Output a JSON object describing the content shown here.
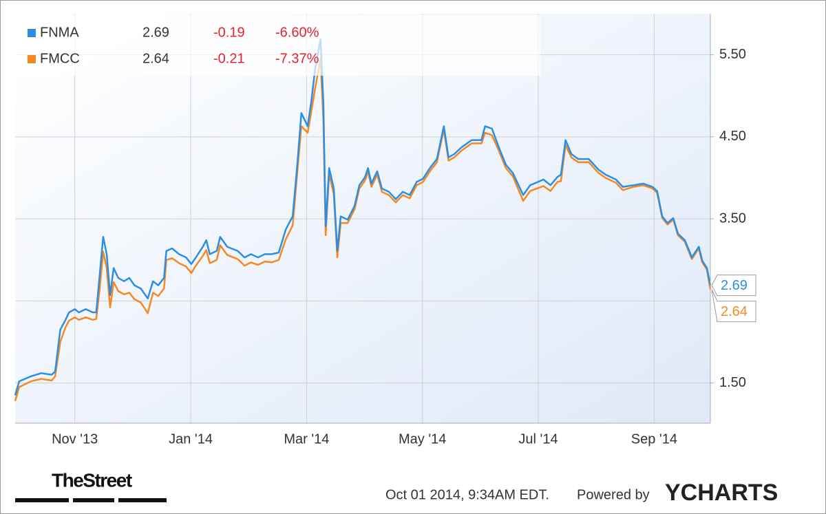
{
  "chart_data": {
    "type": "line",
    "x": [
      9.97,
      10.04,
      10.24,
      10.42,
      10.6,
      10.66,
      10.75,
      10.84,
      10.9,
      11.0,
      11.07,
      11.19,
      11.31,
      11.37,
      11.43,
      11.49,
      11.55,
      11.61,
      11.67,
      11.75,
      11.85,
      11.94,
      12.03,
      12.14,
      12.26,
      12.35,
      12.44,
      12.54,
      12.58,
      12.68,
      12.8,
      12.92,
      13.01,
      13.09,
      13.21,
      13.27,
      13.33,
      13.45,
      13.51,
      13.63,
      13.81,
      13.93,
      14.04,
      14.16,
      14.28,
      14.4,
      14.52,
      14.64,
      14.76,
      14.84,
      14.91,
      15.02,
      15.08,
      15.15,
      15.24,
      15.29,
      15.33,
      15.39,
      15.47,
      15.53,
      15.59,
      15.71,
      15.83,
      15.91,
      16.01,
      16.06,
      16.12,
      16.22,
      16.3,
      16.42,
      16.54,
      16.66,
      16.78,
      16.9,
      17.01,
      17.13,
      17.25,
      17.37,
      17.45,
      17.55,
      17.67,
      17.85,
      18.02,
      18.08,
      18.2,
      18.32,
      18.44,
      18.56,
      18.74,
      18.86,
      19.09,
      19.21,
      19.33,
      19.39,
      19.47,
      19.57,
      19.69,
      19.87,
      20.04,
      20.16,
      20.34,
      20.46,
      20.64,
      20.81,
      20.97,
      21.05,
      21.14,
      21.23,
      21.33,
      21.41,
      21.53,
      21.65,
      21.77,
      21.83,
      21.91,
      21.97
    ],
    "series": [
      {
        "name": "FNMA",
        "color": "#2b8de6",
        "last": "2.69",
        "change": "-0.19",
        "change_pct": "-6.60%",
        "values": [
          1.35,
          1.52,
          1.58,
          1.62,
          1.6,
          1.64,
          2.15,
          2.27,
          2.36,
          2.4,
          2.36,
          2.4,
          2.36,
          2.36,
          2.82,
          3.28,
          3.07,
          2.57,
          2.9,
          2.78,
          2.74,
          2.78,
          2.69,
          2.65,
          2.53,
          2.74,
          2.69,
          2.78,
          3.11,
          3.14,
          3.07,
          3.03,
          2.95,
          3.03,
          3.16,
          3.24,
          3.07,
          3.11,
          3.28,
          3.16,
          3.11,
          3.03,
          3.07,
          3.03,
          3.07,
          3.07,
          3.09,
          3.37,
          3.53,
          4.16,
          4.79,
          4.63,
          4.92,
          5.34,
          5.69,
          4.92,
          3.41,
          4.12,
          3.87,
          3.11,
          3.53,
          3.49,
          3.66,
          3.91,
          4.01,
          4.12,
          3.93,
          4.08,
          3.87,
          3.83,
          3.74,
          3.83,
          3.79,
          3.95,
          3.99,
          4.12,
          4.23,
          4.63,
          4.25,
          4.29,
          4.37,
          4.46,
          4.46,
          4.63,
          4.6,
          4.37,
          4.16,
          4.06,
          3.79,
          3.91,
          3.98,
          3.91,
          4.01,
          4.04,
          4.46,
          4.29,
          4.23,
          4.23,
          4.1,
          4.04,
          3.98,
          3.89,
          3.91,
          3.93,
          3.89,
          3.84,
          3.53,
          3.45,
          3.51,
          3.32,
          3.24,
          3.03,
          3.16,
          2.99,
          2.9,
          2.69
        ]
      },
      {
        "name": "FMCC",
        "color": "#f5891f",
        "last": "2.64",
        "change": "-0.21",
        "change_pct": "-7.37%",
        "values": [
          1.28,
          1.45,
          1.52,
          1.55,
          1.53,
          1.58,
          2.0,
          2.18,
          2.26,
          2.3,
          2.27,
          2.3,
          2.27,
          2.28,
          2.65,
          3.1,
          2.9,
          2.42,
          2.73,
          2.62,
          2.58,
          2.6,
          2.52,
          2.48,
          2.35,
          2.6,
          2.56,
          2.65,
          3.0,
          3.02,
          2.96,
          2.92,
          2.84,
          2.93,
          3.05,
          3.12,
          2.96,
          3.0,
          3.18,
          3.06,
          3.01,
          2.93,
          2.97,
          2.94,
          2.98,
          2.97,
          3.0,
          3.25,
          3.42,
          4.06,
          4.63,
          4.55,
          4.8,
          5.1,
          5.45,
          4.7,
          3.3,
          4.05,
          3.8,
          3.03,
          3.45,
          3.45,
          3.62,
          3.87,
          3.97,
          4.08,
          3.89,
          4.04,
          3.83,
          3.79,
          3.7,
          3.79,
          3.75,
          3.91,
          3.95,
          4.08,
          4.19,
          4.59,
          4.21,
          4.25,
          4.33,
          4.42,
          4.42,
          4.55,
          4.52,
          4.33,
          4.12,
          4.02,
          3.72,
          3.84,
          3.9,
          3.84,
          3.95,
          3.96,
          4.4,
          4.25,
          4.19,
          4.19,
          4.06,
          4.0,
          3.94,
          3.85,
          3.89,
          3.91,
          3.87,
          3.82,
          3.51,
          3.43,
          3.49,
          3.3,
          3.22,
          3.01,
          3.14,
          2.97,
          2.88,
          2.64
        ]
      }
    ],
    "xlim": [
      9.97,
      21.97
    ],
    "xticks": [
      {
        "value": 11,
        "label": "Nov '13"
      },
      {
        "value": 13,
        "label": "Jan '14"
      },
      {
        "value": 15,
        "label": "Mar '14"
      },
      {
        "value": 17,
        "label": "May '14"
      },
      {
        "value": 19,
        "label": "Jul '14"
      },
      {
        "value": 21,
        "label": "Sep '14"
      }
    ],
    "ylim": [
      1.01,
      6.0
    ],
    "yticks": [
      {
        "value": 1.5,
        "label": "1.50"
      },
      {
        "value": 3.5,
        "label": "3.50"
      },
      {
        "value": 4.5,
        "label": "4.50"
      },
      {
        "value": 5.5,
        "label": "5.50"
      }
    ],
    "ygrid": [
      1.5,
      2.5,
      3.5,
      4.5,
      5.5
    ],
    "grid": true
  },
  "footer": {
    "source_logo": "TheStreet",
    "timestamp": "Oct 01 2014, 9:34AM EDT.",
    "powered_by": "Powered by",
    "brand": "YCHARTS"
  }
}
